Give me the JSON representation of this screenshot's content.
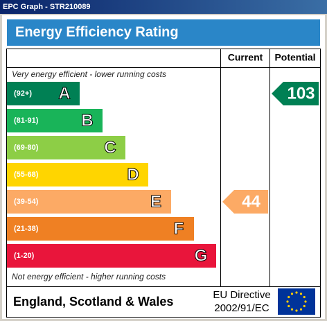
{
  "window_title": "EPC Graph - STR210089",
  "header": {
    "title": "Energy Efficiency Rating"
  },
  "columns": {
    "current": "Current",
    "potential": "Potential"
  },
  "top_note": "Very energy efficient - lower running costs",
  "bottom_note": "Not energy efficient - higher running costs",
  "bands": [
    {
      "range": "(92+)",
      "letter": "A",
      "color": "#008054"
    },
    {
      "range": "(81-91)",
      "letter": "B",
      "color": "#19b459"
    },
    {
      "range": "(69-80)",
      "letter": "C",
      "color": "#8dce46"
    },
    {
      "range": "(55-68)",
      "letter": "D",
      "color": "#ffd500"
    },
    {
      "range": "(39-54)",
      "letter": "E",
      "color": "#fcaa65"
    },
    {
      "range": "(21-38)",
      "letter": "F",
      "color": "#ef8023"
    },
    {
      "range": "(1-20)",
      "letter": "G",
      "color": "#e9153b"
    }
  ],
  "current": 44,
  "potential": 103,
  "footer": {
    "region": "England, Scotland & Wales",
    "directive_line1": "EU Directive",
    "directive_line2": "2002/91/EC"
  }
}
